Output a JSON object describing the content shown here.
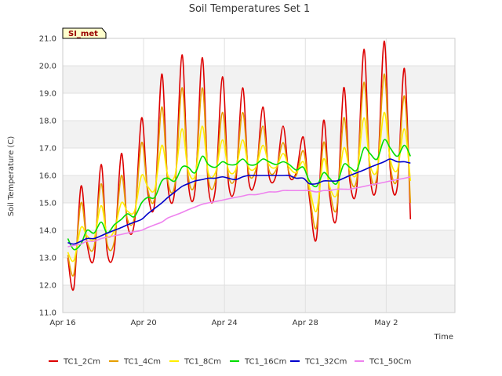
{
  "chart_data": {
    "type": "line",
    "title": "Soil Temperatures Set 1",
    "xlabel": "Time",
    "ylabel": "Soil Temperature (C)",
    "site_label": "SI_met",
    "xlim": [
      0,
      19.4
    ],
    "ylim": [
      11.0,
      21.0
    ],
    "x_ticks": [
      {
        "x": 0,
        "label": "Apr 16"
      },
      {
        "x": 4,
        "label": "Apr 20"
      },
      {
        "x": 8,
        "label": "Apr 24"
      },
      {
        "x": 12,
        "label": "Apr 28"
      },
      {
        "x": 16,
        "label": "May 2"
      }
    ],
    "y_ticks": [
      11.0,
      12.0,
      13.0,
      14.0,
      15.0,
      16.0,
      17.0,
      18.0,
      19.0,
      20.0,
      21.0
    ],
    "grid": true,
    "legend_position": "bottom",
    "x": [
      0.25,
      0.55,
      0.9,
      1.2,
      1.55,
      1.9,
      2.2,
      2.55,
      2.9,
      3.2,
      3.55,
      3.9,
      4.2,
      4.55,
      4.9,
      5.2,
      5.55,
      5.9,
      6.2,
      6.55,
      6.9,
      7.2,
      7.55,
      7.9,
      8.2,
      8.55,
      8.9,
      9.2,
      9.55,
      9.9,
      10.2,
      10.55,
      10.9,
      11.2,
      11.55,
      11.9,
      12.2,
      12.55,
      12.9,
      13.2,
      13.55,
      13.9,
      14.2,
      14.55,
      14.9,
      15.2,
      15.55,
      15.9,
      16.2,
      16.55,
      16.9,
      17.2
    ],
    "series": [
      {
        "name": "TC1_2Cm",
        "color": "#dd0000",
        "values": [
          13.0,
          11.9,
          15.6,
          13.5,
          13.0,
          16.4,
          13.2,
          13.3,
          16.8,
          14.2,
          14.3,
          18.1,
          15.4,
          15.0,
          19.7,
          15.6,
          15.5,
          20.4,
          15.8,
          15.5,
          20.3,
          15.6,
          15.5,
          19.6,
          15.7,
          15.7,
          19.2,
          15.8,
          15.9,
          18.5,
          16.0,
          16.0,
          17.8,
          16.0,
          16.1,
          17.4,
          15.2,
          13.7,
          18.0,
          15.3,
          14.5,
          19.2,
          15.8,
          15.6,
          20.6,
          16.0,
          15.8,
          20.9,
          16.2,
          15.6,
          19.9,
          14.4
        ]
      },
      {
        "name": "TC1_4Cm",
        "color": "#e69f00",
        "values": [
          13.1,
          12.4,
          15.0,
          13.6,
          13.4,
          15.7,
          13.5,
          13.6,
          16.0,
          14.4,
          14.5,
          17.2,
          15.5,
          15.2,
          18.5,
          15.8,
          15.7,
          19.2,
          16.0,
          15.8,
          19.2,
          15.9,
          15.8,
          18.3,
          16.0,
          16.0,
          18.3,
          16.1,
          16.2,
          17.8,
          16.2,
          16.2,
          17.2,
          16.1,
          16.0,
          16.9,
          15.4,
          14.1,
          17.2,
          15.5,
          14.8,
          18.1,
          16.0,
          15.9,
          19.4,
          16.2,
          16.0,
          19.7,
          16.4,
          15.9,
          18.9,
          15.0
        ]
      },
      {
        "name": "TC1_8Cm",
        "color": "#ffee00",
        "values": [
          13.2,
          12.9,
          14.1,
          13.8,
          13.7,
          14.9,
          13.8,
          14.0,
          15.0,
          14.7,
          14.7,
          16.0,
          15.6,
          15.5,
          17.1,
          16.0,
          16.0,
          17.7,
          16.2,
          16.0,
          17.8,
          16.1,
          16.1,
          17.3,
          16.2,
          16.2,
          17.3,
          16.3,
          16.3,
          17.1,
          16.4,
          16.3,
          16.8,
          16.3,
          16.1,
          16.5,
          15.6,
          14.7,
          16.6,
          15.6,
          15.3,
          17.0,
          16.2,
          16.1,
          18.1,
          16.4,
          16.2,
          18.3,
          16.6,
          16.2,
          17.7,
          15.8
        ]
      },
      {
        "name": "TC1_16Cm",
        "color": "#00dd00",
        "values": [
          13.7,
          13.3,
          13.5,
          14.0,
          13.9,
          14.3,
          13.9,
          14.2,
          14.4,
          14.6,
          14.5,
          15.0,
          15.2,
          15.2,
          15.8,
          15.9,
          15.8,
          16.3,
          16.3,
          16.1,
          16.7,
          16.4,
          16.3,
          16.5,
          16.4,
          16.4,
          16.6,
          16.4,
          16.4,
          16.6,
          16.5,
          16.4,
          16.5,
          16.4,
          16.2,
          16.3,
          15.8,
          15.6,
          16.1,
          15.9,
          15.7,
          16.4,
          16.3,
          16.2,
          17.0,
          16.8,
          16.6,
          17.3,
          17.0,
          16.7,
          17.1,
          16.7
        ]
      },
      {
        "name": "TC1_32Cm",
        "color": "#0000cc",
        "values": [
          13.55,
          13.5,
          13.6,
          13.7,
          13.7,
          13.8,
          13.9,
          14.0,
          14.1,
          14.2,
          14.3,
          14.4,
          14.6,
          14.8,
          15.0,
          15.2,
          15.4,
          15.6,
          15.7,
          15.8,
          15.85,
          15.9,
          15.9,
          15.95,
          15.9,
          15.85,
          15.95,
          16.0,
          16.0,
          16.0,
          16.0,
          16.0,
          16.0,
          16.0,
          15.9,
          15.9,
          15.7,
          15.7,
          15.8,
          15.8,
          15.8,
          15.9,
          16.0,
          16.1,
          16.2,
          16.3,
          16.4,
          16.5,
          16.6,
          16.5,
          16.5,
          16.45
        ]
      },
      {
        "name": "TC1_50Cm",
        "color": "#ee82ee",
        "values": [
          13.4,
          13.45,
          13.5,
          13.6,
          13.6,
          13.7,
          13.75,
          13.8,
          13.85,
          13.9,
          13.95,
          14.0,
          14.1,
          14.2,
          14.3,
          14.45,
          14.55,
          14.65,
          14.75,
          14.85,
          14.95,
          15.0,
          15.05,
          15.1,
          15.15,
          15.2,
          15.25,
          15.3,
          15.3,
          15.35,
          15.4,
          15.4,
          15.45,
          15.45,
          15.45,
          15.45,
          15.45,
          15.4,
          15.45,
          15.45,
          15.5,
          15.5,
          15.5,
          15.55,
          15.6,
          15.65,
          15.7,
          15.75,
          15.8,
          15.85,
          15.9,
          15.95
        ]
      }
    ]
  }
}
